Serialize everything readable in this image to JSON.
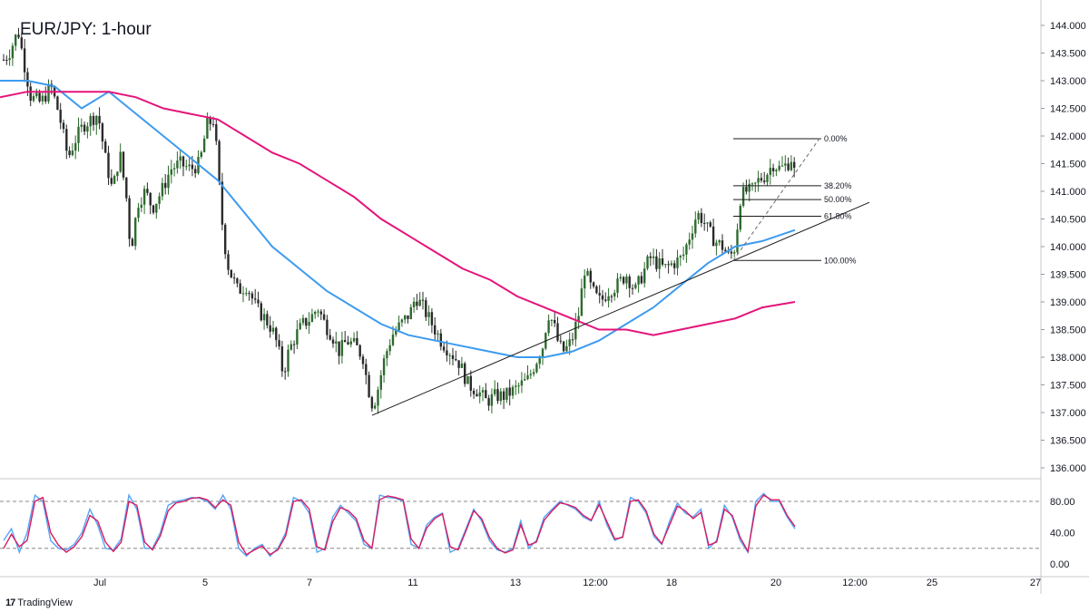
{
  "title": "EUR/JPY: 1-hour",
  "brand": {
    "logo": "17",
    "name": "TradingView"
  },
  "colors": {
    "up_candle": "#2e6b2e",
    "down_candle": "#2a2a2a",
    "ma_fast": "#3d9bf0",
    "ma_slow": "#e5147a",
    "stoch_k": "#55a5f5",
    "stoch_d": "#d81b60",
    "grid": "#e6e6e6",
    "text": "#131722"
  },
  "chart_data": [
    {
      "type": "candlestick",
      "title": "EUR/JPY: 1-hour",
      "ylim": [
        135.8,
        144.25
      ],
      "y_ticks": [
        "144.000",
        "143.500",
        "143.000",
        "142.500",
        "142.000",
        "141.500",
        "141.000",
        "140.500",
        "140.000",
        "139.500",
        "139.000",
        "138.500",
        "138.000",
        "137.500",
        "137.000",
        "136.500",
        "136.000"
      ],
      "x_tick_labels": [
        "Jul",
        "5",
        "7",
        "11",
        "13",
        "12:00",
        "18",
        "20",
        "12:00",
        "25",
        "27"
      ],
      "price_path": [
        [
          0,
          143.3
        ],
        [
          10,
          143.5
        ],
        [
          20,
          143.9
        ],
        [
          28,
          143.2
        ],
        [
          34,
          142.7
        ],
        [
          45,
          142.6
        ],
        [
          56,
          142.9
        ],
        [
          65,
          142.4
        ],
        [
          75,
          141.6
        ],
        [
          82,
          141.9
        ],
        [
          92,
          142.2
        ],
        [
          100,
          142.3
        ],
        [
          108,
          142.4
        ],
        [
          116,
          141.6
        ],
        [
          124,
          141.0
        ],
        [
          132,
          141.7
        ],
        [
          140,
          140.8
        ],
        [
          144,
          139.9
        ],
        [
          152,
          140.8
        ],
        [
          160,
          141.0
        ],
        [
          168,
          140.7
        ],
        [
          178,
          141.0
        ],
        [
          188,
          141.4
        ],
        [
          198,
          141.5
        ],
        [
          210,
          141.4
        ],
        [
          220,
          141.5
        ],
        [
          228,
          142.2
        ],
        [
          236,
          142.3
        ],
        [
          241,
          141.2
        ],
        [
          246,
          140.2
        ],
        [
          252,
          139.6
        ],
        [
          262,
          139.2
        ],
        [
          272,
          139.3
        ],
        [
          282,
          138.9
        ],
        [
          292,
          138.7
        ],
        [
          300,
          138.5
        ],
        [
          306,
          138.2
        ],
        [
          312,
          137.7
        ],
        [
          318,
          138.1
        ],
        [
          326,
          138.4
        ],
        [
          334,
          138.6
        ],
        [
          342,
          138.7
        ],
        [
          350,
          138.9
        ],
        [
          358,
          138.6
        ],
        [
          366,
          138.4
        ],
        [
          374,
          138.1
        ],
        [
          382,
          138.3
        ],
        [
          392,
          138.2
        ],
        [
          400,
          138.0
        ],
        [
          405,
          137.5
        ],
        [
          411,
          137.1
        ],
        [
          416,
          137.4
        ],
        [
          424,
          138.0
        ],
        [
          432,
          138.4
        ],
        [
          442,
          138.6
        ],
        [
          452,
          138.8
        ],
        [
          458,
          139.1
        ],
        [
          466,
          138.9
        ],
        [
          476,
          138.6
        ],
        [
          486,
          138.3
        ],
        [
          496,
          138.1
        ],
        [
          506,
          137.9
        ],
        [
          516,
          137.5
        ],
        [
          526,
          137.4
        ],
        [
          536,
          137.2
        ],
        [
          546,
          137.3
        ],
        [
          556,
          137.3
        ],
        [
          566,
          137.4
        ],
        [
          574,
          137.5
        ],
        [
          582,
          137.6
        ],
        [
          590,
          137.9
        ],
        [
          598,
          138.2
        ],
        [
          604,
          138.8
        ],
        [
          610,
          138.6
        ],
        [
          616,
          138.2
        ],
        [
          622,
          138.1
        ],
        [
          630,
          138.3
        ],
        [
          638,
          138.8
        ],
        [
          644,
          139.6
        ],
        [
          650,
          139.3
        ],
        [
          656,
          139.1
        ],
        [
          662,
          139.0
        ],
        [
          670,
          139.2
        ],
        [
          680,
          139.3
        ],
        [
          690,
          139.5
        ],
        [
          700,
          139.2
        ],
        [
          708,
          139.5
        ],
        [
          716,
          139.8
        ],
        [
          724,
          139.7
        ],
        [
          732,
          139.6
        ],
        [
          742,
          139.7
        ],
        [
          752,
          139.8
        ],
        [
          760,
          140.2
        ],
        [
          768,
          140.6
        ],
        [
          774,
          140.5
        ],
        [
          780,
          140.3
        ],
        [
          788,
          140.1
        ],
        [
          796,
          140.0
        ],
        [
          804,
          139.8
        ],
        [
          810,
          140.0
        ],
        [
          816,
          140.9
        ],
        [
          822,
          141.0
        ],
        [
          828,
          141.0
        ],
        [
          836,
          141.2
        ],
        [
          844,
          141.3
        ],
        [
          852,
          141.5
        ],
        [
          860,
          141.4
        ],
        [
          868,
          141.5
        ],
        [
          872,
          141.6
        ],
        [
          876,
          141.3
        ]
      ],
      "series": [
        {
          "name": "",
          "x": [
            0,
            30,
            60,
            90,
            120,
            150,
            180,
            210,
            240,
            270,
            300,
            330,
            360,
            390,
            420,
            450,
            480,
            510,
            540,
            570,
            600,
            630,
            660,
            690,
            720,
            750,
            780,
            810,
            840,
            876
          ],
          "values": [
            143.0,
            143.0,
            142.9,
            142.5,
            142.8,
            142.4,
            142.0,
            141.6,
            141.2,
            140.6,
            140.0,
            139.6,
            139.2,
            138.9,
            138.6,
            138.4,
            138.3,
            138.2,
            138.1,
            138.0,
            138.0,
            138.1,
            138.3,
            138.6,
            138.9,
            139.3,
            139.7,
            140.0,
            140.1,
            140.3
          ]
        },
        {
          "name": "",
          "x": [
            0,
            30,
            60,
            90,
            120,
            150,
            180,
            210,
            240,
            270,
            300,
            330,
            360,
            390,
            420,
            450,
            480,
            510,
            540,
            570,
            600,
            630,
            660,
            690,
            720,
            750,
            780,
            810,
            840,
            876
          ],
          "values": [
            142.7,
            142.8,
            142.8,
            142.8,
            142.8,
            142.7,
            142.5,
            142.4,
            142.3,
            142.0,
            141.7,
            141.5,
            141.2,
            140.9,
            140.5,
            140.2,
            139.9,
            139.6,
            139.4,
            139.1,
            138.9,
            138.7,
            138.5,
            138.5,
            138.4,
            138.5,
            138.6,
            138.7,
            138.9,
            139.0
          ]
        }
      ],
      "trendline": {
        "from": [
          410,
          136.95
        ],
        "to": [
          958,
          140.8
        ]
      },
      "fibonacci": [
        {
          "level": "0.00%",
          "price": 141.95
        },
        {
          "level": "38.20%",
          "price": 141.1
        },
        {
          "level": "50.00%",
          "price": 140.85
        },
        {
          "level": "61.80%",
          "price": 140.55
        },
        {
          "level": "100.00%",
          "price": 139.75
        }
      ],
      "fib_x_range": [
        808,
        905
      ],
      "fib_diagonal": {
        "from": [
          808,
          139.75
        ],
        "to": [
          905,
          142.0
        ]
      }
    },
    {
      "type": "line",
      "title": "",
      "ylim": [
        0,
        100
      ],
      "y_ticks": [
        "80.00",
        "40.00",
        "0.00"
      ],
      "levels": [
        80,
        20
      ],
      "series": [
        {
          "name": "",
          "values": [
            30,
            45,
            15,
            40,
            88,
            80,
            30,
            20,
            18,
            25,
            40,
            70,
            50,
            20,
            18,
            32,
            88,
            70,
            20,
            20,
            40,
            75,
            80,
            82,
            85,
            84,
            80,
            70,
            88,
            70,
            20,
            10,
            20,
            25,
            10,
            20,
            40,
            85,
            80,
            65,
            15,
            20,
            60,
            75,
            65,
            55,
            25,
            20,
            88,
            85,
            84,
            80,
            25,
            20,
            50,
            60,
            65,
            15,
            20,
            45,
            70,
            55,
            30,
            18,
            15,
            20,
            55,
            20,
            30,
            60,
            70,
            80,
            75,
            70,
            60,
            55,
            80,
            50,
            30,
            35,
            85,
            80,
            65,
            35,
            25,
            55,
            78,
            65,
            60,
            70,
            20,
            30,
            75,
            60,
            30,
            15,
            80,
            90,
            80,
            80,
            60,
            45
          ]
        },
        {
          "name": "",
          "values": [
            20,
            38,
            22,
            30,
            80,
            85,
            40,
            24,
            15,
            22,
            35,
            62,
            55,
            28,
            16,
            28,
            80,
            75,
            28,
            18,
            36,
            68,
            78,
            80,
            84,
            85,
            82,
            72,
            82,
            75,
            28,
            12,
            18,
            23,
            12,
            18,
            36,
            80,
            82,
            70,
            22,
            18,
            54,
            72,
            68,
            58,
            30,
            20,
            82,
            87,
            85,
            82,
            32,
            20,
            46,
            58,
            64,
            22,
            18,
            42,
            68,
            58,
            34,
            20,
            14,
            18,
            50,
            24,
            28,
            56,
            68,
            78,
            76,
            72,
            62,
            56,
            76,
            54,
            32,
            34,
            80,
            82,
            68,
            38,
            26,
            50,
            74,
            68,
            58,
            66,
            24,
            28,
            70,
            62,
            34,
            16,
            74,
            88,
            82,
            82,
            62,
            48
          ]
        }
      ]
    }
  ]
}
